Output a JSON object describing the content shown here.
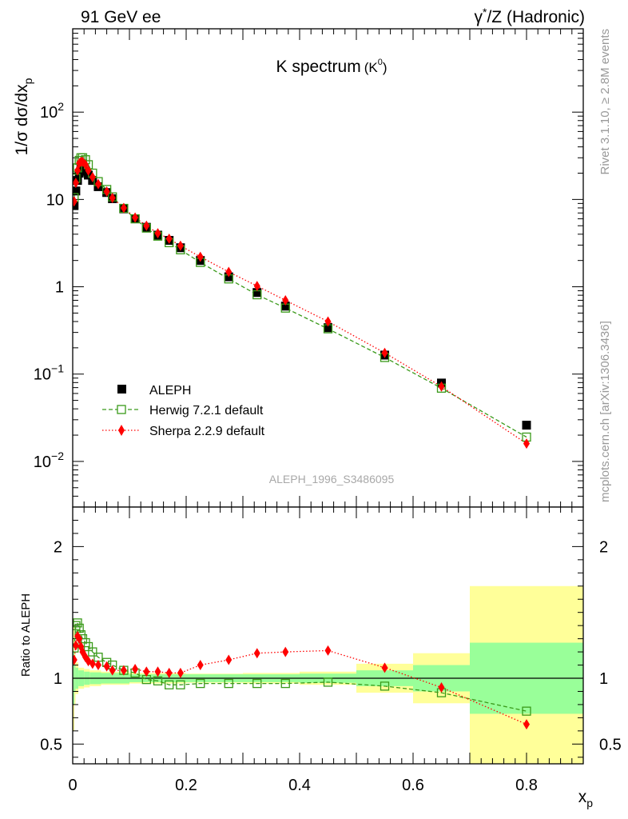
{
  "header": {
    "left": "91 GeV ee",
    "right_prefix": "γ",
    "right_sup": "*",
    "right_suffix": "/Z (Hadronic)"
  },
  "side_text": {
    "top": "Rivet 3.1.10, ≥ 2.8M events",
    "bottom": "mcplots.cern.ch [arXiv:1306.3436]"
  },
  "analysis_tag": "ALEPH_1996_S3486095",
  "colors": {
    "data": "#000000",
    "herwig": "#3a9a1a",
    "sherpa": "#ff0000",
    "band_inner": "#99ff99",
    "band_outer": "#ffff99"
  },
  "chart_data": [
    {
      "type": "scatter",
      "title_main": "K spectrum",
      "title_sub_base": "(K",
      "title_sub_sup": "0",
      "title_sub_end": ")",
      "ylabel_base": "1/σ dσ/dx",
      "ylabel_sub": "p",
      "yscale": "log",
      "xlim": [
        0,
        0.9
      ],
      "ylim": [
        0.003,
        900
      ],
      "y_ticks": [
        {
          "v": 0.01,
          "base": "10",
          "exp": "−2"
        },
        {
          "v": 0.1,
          "base": "10",
          "exp": "−1"
        },
        {
          "v": 1,
          "base": "1",
          "exp": ""
        },
        {
          "v": 10,
          "base": "10",
          "exp": ""
        },
        {
          "v": 100,
          "base": "10",
          "exp": "2"
        }
      ],
      "legend_position": "bottom-left",
      "series": [
        {
          "name": "ALEPH",
          "marker": "filled-square",
          "x": [
            0.0025,
            0.0055,
            0.0085,
            0.0115,
            0.0145,
            0.0175,
            0.0225,
            0.0275,
            0.035,
            0.045,
            0.06,
            0.07,
            0.09,
            0.11,
            0.13,
            0.15,
            0.17,
            0.19,
            0.225,
            0.275,
            0.325,
            0.375,
            0.45,
            0.55,
            0.65,
            0.8
          ],
          "y": [
            8.5,
            12.5,
            16.5,
            20,
            22,
            22,
            21,
            19,
            16.5,
            14,
            12,
            10.2,
            7.8,
            6.0,
            4.8,
            3.9,
            3.4,
            2.8,
            2.0,
            1.3,
            0.86,
            0.6,
            0.34,
            0.165,
            0.079,
            0.026
          ]
        },
        {
          "name": "Herwig 7.2.1 default",
          "marker": "open-square",
          "line": "dashed",
          "x": [
            0.0025,
            0.0055,
            0.0085,
            0.0115,
            0.0145,
            0.0175,
            0.0225,
            0.0275,
            0.035,
            0.045,
            0.06,
            0.07,
            0.09,
            0.11,
            0.13,
            0.15,
            0.17,
            0.19,
            0.225,
            0.275,
            0.325,
            0.375,
            0.45,
            0.55,
            0.65,
            0.8
          ],
          "y": [
            10.5,
            17.5,
            23,
            28,
            30,
            30,
            28.5,
            25,
            20,
            16,
            13,
            10.7,
            7.9,
            6.0,
            4.7,
            3.8,
            3.2,
            2.65,
            1.9,
            1.23,
            0.81,
            0.57,
            0.33,
            0.155,
            0.069,
            0.019
          ]
        },
        {
          "name": "Sherpa 2.2.9 default",
          "marker": "filled-diamond",
          "line": "dotted",
          "x": [
            0.0025,
            0.0055,
            0.0085,
            0.0115,
            0.0145,
            0.0175,
            0.0225,
            0.0275,
            0.035,
            0.045,
            0.06,
            0.07,
            0.09,
            0.11,
            0.13,
            0.15,
            0.17,
            0.19,
            0.225,
            0.275,
            0.325,
            0.375,
            0.45,
            0.55,
            0.65,
            0.8
          ],
          "y": [
            9.5,
            15.5,
            21.5,
            26,
            27,
            27,
            25,
            21.5,
            18,
            15,
            12.3,
            10.4,
            8.0,
            6.2,
            5.0,
            4.1,
            3.55,
            2.95,
            2.2,
            1.48,
            1.02,
            0.7,
            0.4,
            0.175,
            0.072,
            0.016
          ]
        }
      ]
    },
    {
      "type": "scatter",
      "ylabel": "Ratio to ALEPH",
      "xlabel_base": "x",
      "xlabel_sub": "p",
      "xlim": [
        0,
        0.9
      ],
      "ylim": [
        0.35,
        2.3
      ],
      "x_ticks": [
        0,
        0.2,
        0.4,
        0.6,
        0.8
      ],
      "x_tick_labels": [
        "0",
        "0.2",
        "0.4",
        "0.6",
        "0.8"
      ],
      "y_ticks": [
        0.5,
        1,
        2
      ],
      "y_tick_labels": [
        "0.5",
        "1",
        "2"
      ],
      "reference_line": 1,
      "bands": {
        "edges": [
          0,
          0.003,
          0.005,
          0.01,
          0.02,
          0.03,
          0.05,
          0.1,
          0.2,
          0.3,
          0.4,
          0.5,
          0.6,
          0.7,
          0.9
        ],
        "inner": [
          0.2,
          0.1,
          0.08,
          0.06,
          0.05,
          0.045,
          0.04,
          0.03,
          0.03,
          0.03,
          0.035,
          0.06,
          0.1,
          0.27
        ],
        "outer": [
          0.4,
          0.2,
          0.12,
          0.08,
          0.07,
          0.06,
          0.05,
          0.04,
          0.035,
          0.04,
          0.05,
          0.11,
          0.19,
          0.7
        ]
      },
      "series": [
        {
          "name": "Herwig 7.2.1 default",
          "x": [
            0.0025,
            0.0055,
            0.0085,
            0.0115,
            0.0145,
            0.0175,
            0.0225,
            0.0275,
            0.035,
            0.045,
            0.06,
            0.07,
            0.09,
            0.11,
            0.13,
            0.15,
            0.17,
            0.19,
            0.225,
            0.275,
            0.325,
            0.375,
            0.45,
            0.55,
            0.65,
            0.8
          ],
          "y": [
            1.23,
            1.4,
            1.42,
            1.38,
            1.33,
            1.3,
            1.27,
            1.24,
            1.2,
            1.16,
            1.12,
            1.1,
            1.06,
            1.04,
            0.99,
            0.98,
            0.95,
            0.95,
            0.96,
            0.96,
            0.96,
            0.96,
            0.97,
            0.94,
            0.89,
            0.75
          ]
        },
        {
          "name": "Sherpa 2.2.9 default",
          "x": [
            0.0025,
            0.0055,
            0.0085,
            0.0115,
            0.0145,
            0.0175,
            0.0225,
            0.0275,
            0.035,
            0.045,
            0.06,
            0.07,
            0.09,
            0.11,
            0.13,
            0.15,
            0.17,
            0.19,
            0.225,
            0.275,
            0.325,
            0.375,
            0.45,
            0.55,
            0.65,
            0.8
          ],
          "y": [
            1.14,
            1.25,
            1.32,
            1.3,
            1.24,
            1.2,
            1.16,
            1.13,
            1.11,
            1.1,
            1.09,
            1.06,
            1.06,
            1.07,
            1.05,
            1.05,
            1.04,
            1.04,
            1.1,
            1.14,
            1.19,
            1.2,
            1.21,
            1.08,
            0.93,
            0.65
          ]
        }
      ]
    }
  ]
}
